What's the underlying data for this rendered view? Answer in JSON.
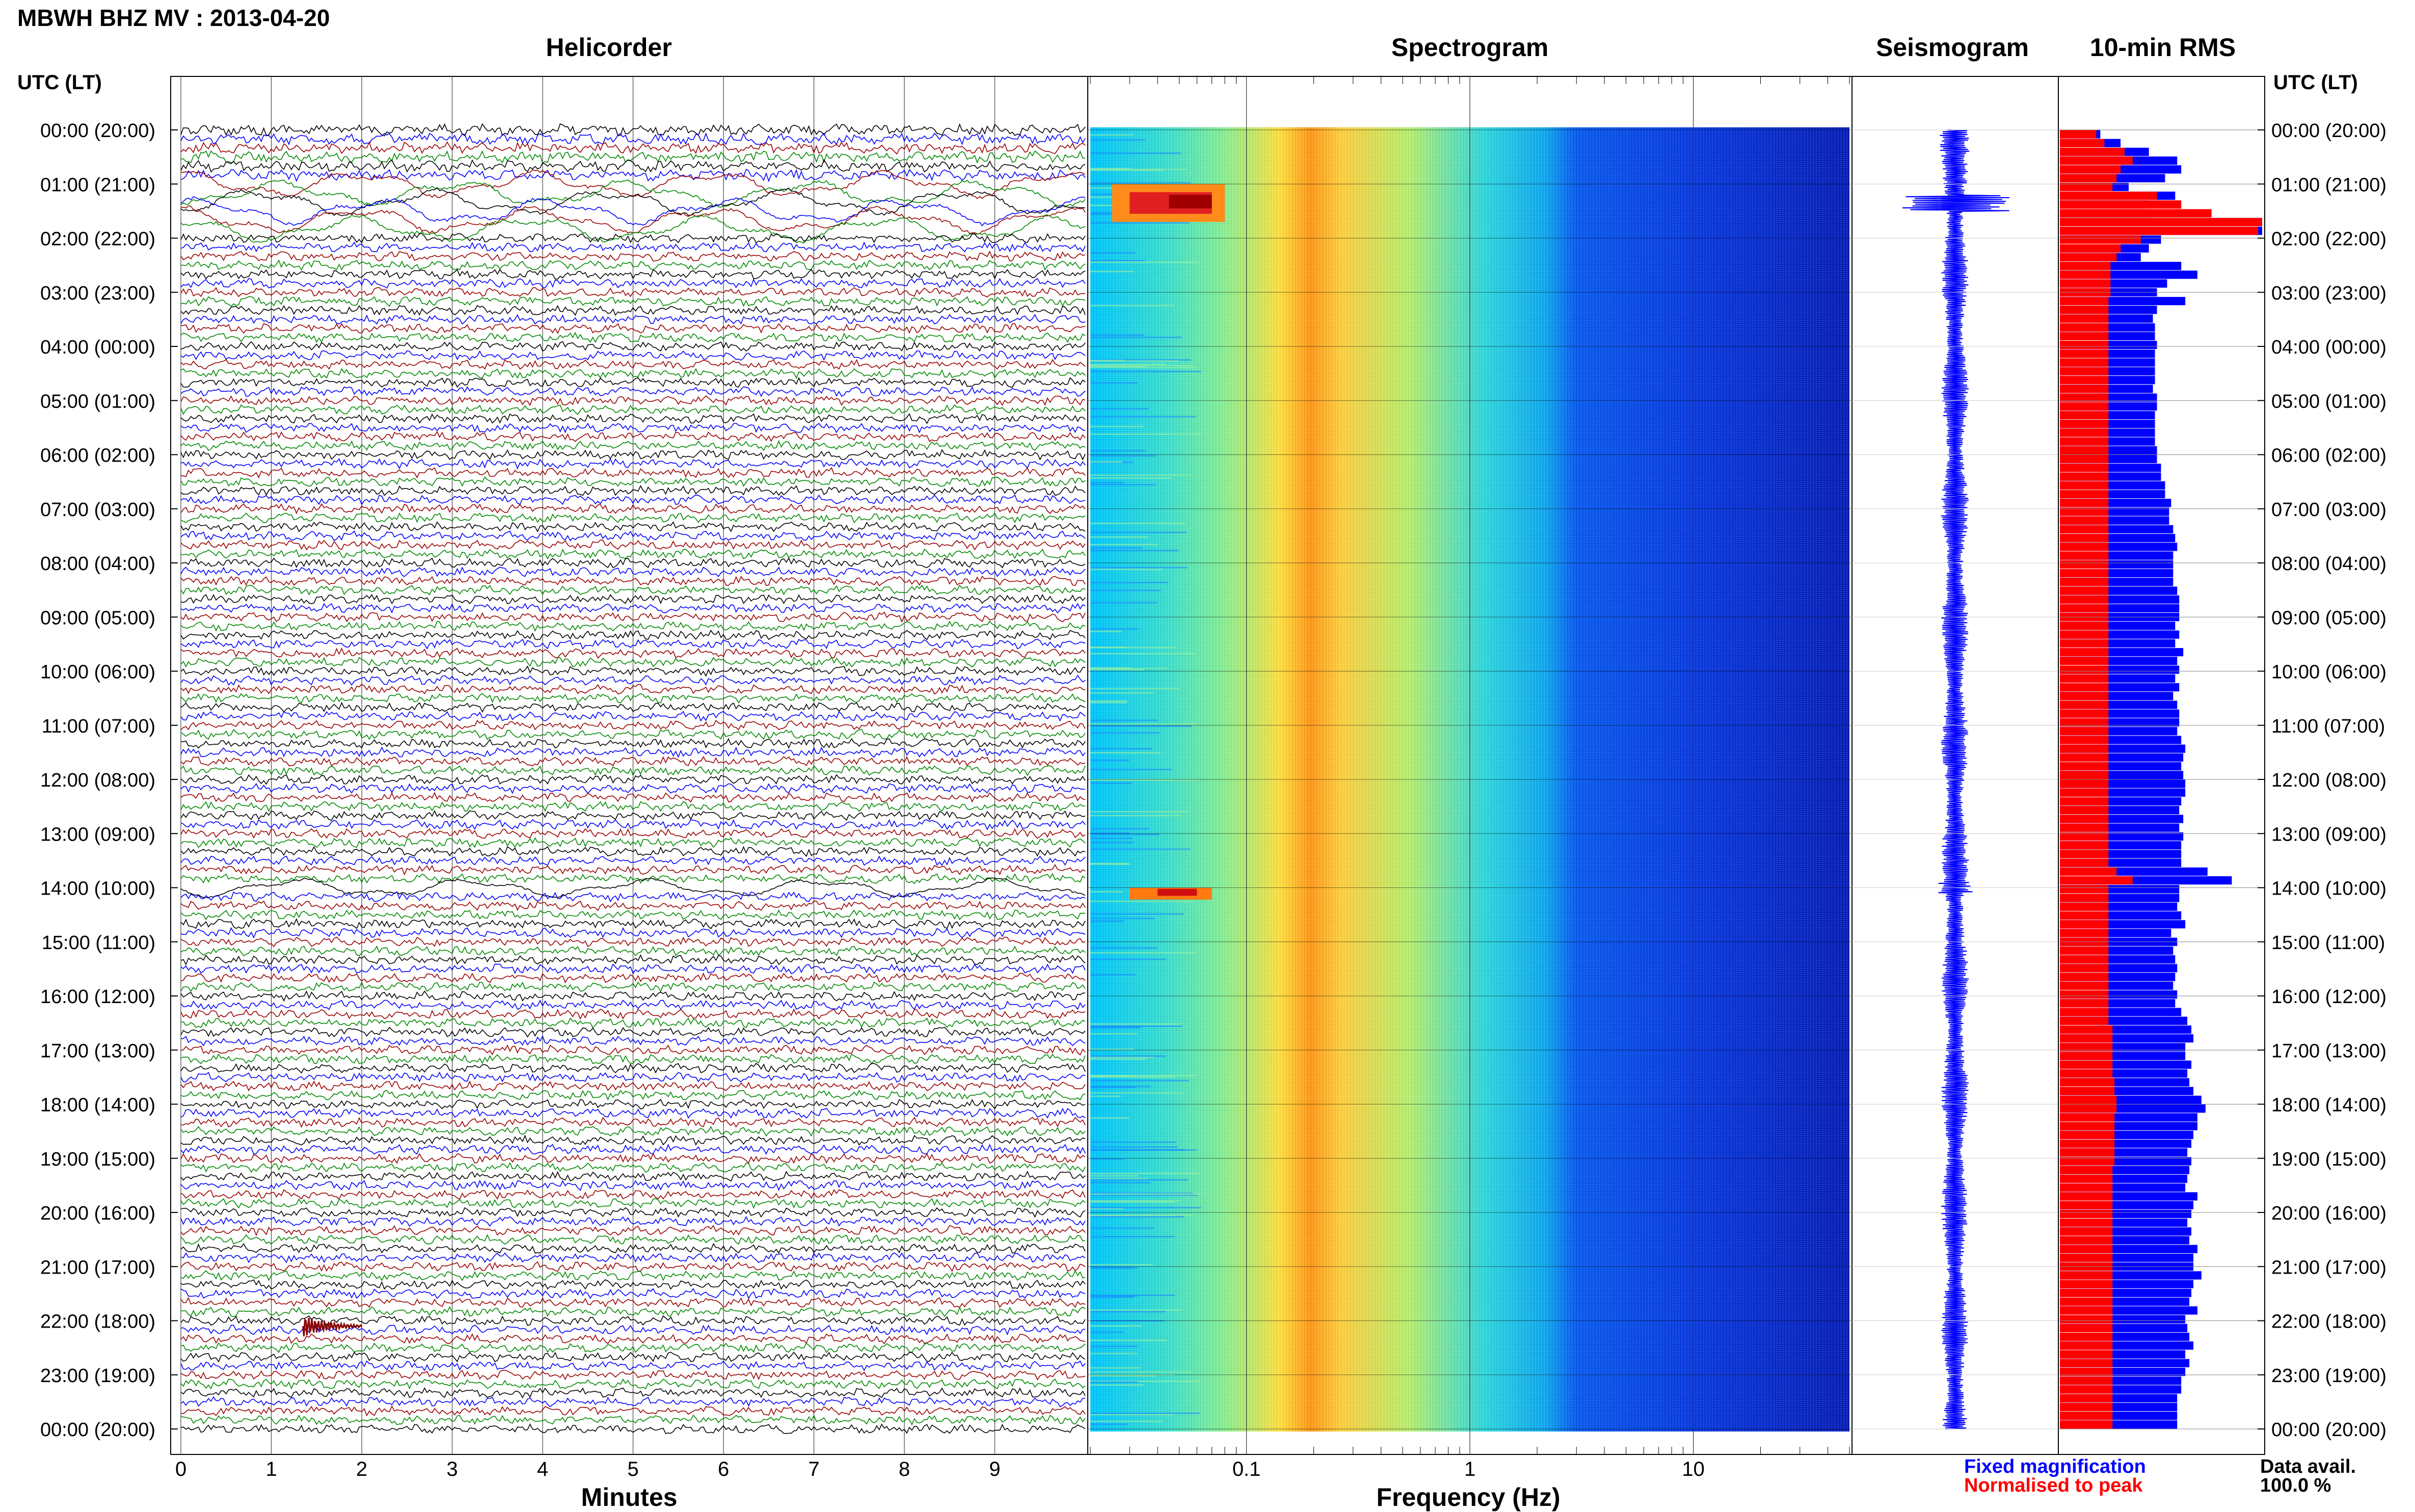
{
  "page_title": "MBWH BHZ MV : 2013-04-20",
  "panel_titles": {
    "helicorder": "Helicorder",
    "spectrogram": "Spectrogram",
    "seismogram": "Seismogram",
    "rms": "10-min RMS"
  },
  "time_axis_title": "UTC (LT)",
  "time_labels": [
    "00:00 (20:00)",
    "01:00 (21:00)",
    "02:00 (22:00)",
    "03:00 (23:00)",
    "04:00 (00:00)",
    "05:00 (01:00)",
    "06:00 (02:00)",
    "07:00 (03:00)",
    "08:00 (04:00)",
    "09:00 (05:00)",
    "10:00 (06:00)",
    "11:00 (07:00)",
    "12:00 (08:00)",
    "13:00 (09:00)",
    "14:00 (10:00)",
    "15:00 (11:00)",
    "16:00 (12:00)",
    "17:00 (13:00)",
    "18:00 (14:00)",
    "19:00 (15:00)",
    "20:00 (16:00)",
    "21:00 (17:00)",
    "22:00 (18:00)",
    "23:00 (19:00)",
    "00:00 (20:00)"
  ],
  "legend": {
    "fixed": "Fixed magnification",
    "normalised": "Normalised to peak",
    "fixed_color": "#0000ff",
    "normalised_color": "#ff0000"
  },
  "data_availability": {
    "label": "Data avail.",
    "value": "100.0 %"
  },
  "chart_data": [
    {
      "type": "line",
      "title": "Helicorder",
      "xlabel": "Minutes",
      "xticks": [
        "0",
        "1",
        "2",
        "3",
        "4",
        "5",
        "6",
        "7",
        "8",
        "9"
      ],
      "xlim": [
        0,
        10
      ],
      "ylim_hours": [
        0,
        24
      ],
      "trace_colors": [
        "#000000",
        "#0000ff",
        "#990000",
        "#008800"
      ],
      "lines_per_hour": 6,
      "annotations": [
        "strong long-period oscillations 01:00-02:00 UTC",
        "event near 14:00 UTC",
        "event at ~22:00 UTC, minute 1.5-2"
      ]
    },
    {
      "type": "heatmap",
      "title": "Spectrogram",
      "xlabel": "Frequency (Hz)",
      "xscale": "log",
      "xticks": [
        "0.1",
        "1",
        "10"
      ],
      "xlim": [
        0.02,
        50
      ],
      "ylim_hours": [
        0,
        24
      ],
      "colormap": "jet",
      "annotations": [
        "high power 0.03-0.08 Hz at 01:00-02:00 UTC",
        "high power 0.03-0.07 Hz at ~14:00 UTC",
        "peak band ~0.2-0.3 Hz throughout"
      ]
    },
    {
      "type": "line",
      "title": "Seismogram",
      "ylim_hours": [
        0,
        24
      ],
      "color": "#0000ff",
      "annotations": [
        "large amplitude burst ~01:20 UTC"
      ]
    },
    {
      "type": "bar",
      "title": "10-min RMS",
      "orientation": "horizontal",
      "ylim_hours": [
        0,
        24
      ],
      "series": [
        {
          "name": "Fixed magnification",
          "color": "#0000ff",
          "values": [
            0.2,
            0.3,
            0.44,
            0.58,
            0.6,
            0.52,
            0.34,
            0.57,
            0.44,
            0.45,
            1.0,
            1.0,
            0.5,
            0.44,
            0.4,
            0.6,
            0.68,
            0.53,
            0.48,
            0.62,
            0.48,
            0.46,
            0.47,
            0.47,
            0.48,
            0.47,
            0.47,
            0.47,
            0.47,
            0.46,
            0.48,
            0.48,
            0.47,
            0.47,
            0.47,
            0.47,
            0.48,
            0.48,
            0.5,
            0.5,
            0.52,
            0.52,
            0.55,
            0.54,
            0.54,
            0.56,
            0.57,
            0.58,
            0.56,
            0.56,
            0.56,
            0.56,
            0.58,
            0.59,
            0.59,
            0.59,
            0.57,
            0.59,
            0.57,
            0.61,
            0.58,
            0.59,
            0.57,
            0.59,
            0.56,
            0.58,
            0.59,
            0.59,
            0.58,
            0.6,
            0.62,
            0.61,
            0.6,
            0.61,
            0.62,
            0.62,
            0.6,
            0.59,
            0.61,
            0.59,
            0.61,
            0.6,
            0.6,
            0.6,
            0.73,
            0.85,
            0.59,
            0.59,
            0.58,
            0.6,
            0.62,
            0.55,
            0.58,
            0.56,
            0.57,
            0.58,
            0.57,
            0.56,
            0.58,
            0.57,
            0.6,
            0.63,
            0.65,
            0.66,
            0.62,
            0.62,
            0.65,
            0.63,
            0.64,
            0.66,
            0.7,
            0.72,
            0.68,
            0.68,
            0.66,
            0.65,
            0.63,
            0.65,
            0.64,
            0.63,
            0.62,
            0.68,
            0.66,
            0.65,
            0.63,
            0.65,
            0.64,
            0.68,
            0.66,
            0.66,
            0.7,
            0.66,
            0.65,
            0.64,
            0.68,
            0.62,
            0.63,
            0.64,
            0.66,
            0.62,
            0.64,
            0.62,
            0.6,
            0.6,
            0.58,
            0.58,
            0.58,
            0.58
          ]
        },
        {
          "name": "Normalised to peak",
          "color": "#ff0000",
          "values": [
            0.18,
            0.22,
            0.32,
            0.36,
            0.3,
            0.28,
            0.26,
            0.48,
            0.6,
            0.75,
            1.0,
            0.98,
            0.4,
            0.3,
            0.28,
            0.25,
            0.25,
            0.25,
            0.25,
            0.24,
            0.24,
            0.24,
            0.24,
            0.24,
            0.24,
            0.24,
            0.24,
            0.24,
            0.24,
            0.24,
            0.24,
            0.24,
            0.24,
            0.24,
            0.24,
            0.24,
            0.24,
            0.24,
            0.24,
            0.24,
            0.24,
            0.24,
            0.24,
            0.24,
            0.24,
            0.24,
            0.24,
            0.24,
            0.24,
            0.24,
            0.24,
            0.24,
            0.24,
            0.24,
            0.24,
            0.24,
            0.24,
            0.24,
            0.24,
            0.24,
            0.24,
            0.24,
            0.24,
            0.24,
            0.24,
            0.24,
            0.24,
            0.24,
            0.24,
            0.24,
            0.24,
            0.24,
            0.24,
            0.24,
            0.24,
            0.24,
            0.24,
            0.24,
            0.24,
            0.24,
            0.24,
            0.24,
            0.24,
            0.24,
            0.28,
            0.36,
            0.24,
            0.24,
            0.24,
            0.24,
            0.24,
            0.24,
            0.24,
            0.24,
            0.24,
            0.24,
            0.24,
            0.24,
            0.24,
            0.24,
            0.24,
            0.24,
            0.26,
            0.26,
            0.26,
            0.26,
            0.26,
            0.26,
            0.27,
            0.27,
            0.28,
            0.28,
            0.27,
            0.27,
            0.27,
            0.27,
            0.27,
            0.27,
            0.26,
            0.26,
            0.26,
            0.26,
            0.26,
            0.26,
            0.26,
            0.26,
            0.26,
            0.26,
            0.26,
            0.26,
            0.26,
            0.26,
            0.26,
            0.26,
            0.26,
            0.26,
            0.26,
            0.26,
            0.26,
            0.26,
            0.26,
            0.26,
            0.26,
            0.26,
            0.26,
            0.26,
            0.26,
            0.26
          ]
        }
      ]
    }
  ]
}
